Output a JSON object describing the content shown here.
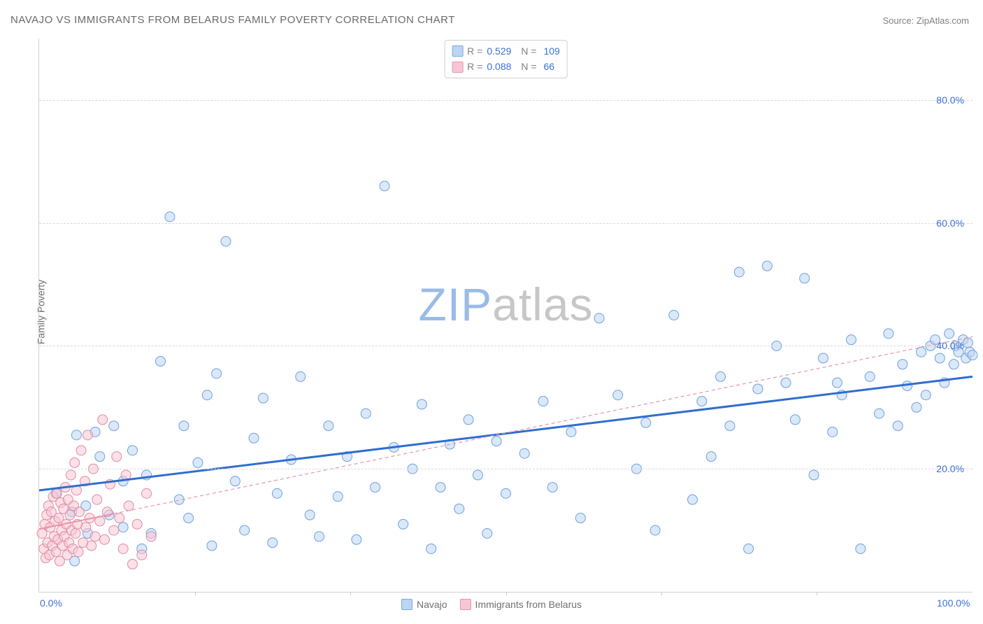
{
  "title": "NAVAJO VS IMMIGRANTS FROM BELARUS FAMILY POVERTY CORRELATION CHART",
  "source_prefix": "Source: ",
  "source_name": "ZipAtlas.com",
  "ylabel": "Family Poverty",
  "watermark_zip": "ZIP",
  "watermark_atlas": "atlas",
  "watermark_color_zip": "#9bbbe8",
  "watermark_color_atlas": "#c7c7c7",
  "legend_top": {
    "rows": [
      {
        "swatch_fill": "#bcd5f2",
        "swatch_border": "#7ba7e0",
        "r_label": "R =",
        "r_value": "0.529",
        "n_label": "N =",
        "n_value": "109"
      },
      {
        "swatch_fill": "#f6c7d3",
        "swatch_border": "#e893ab",
        "r_label": "R =",
        "r_value": "0.088",
        "n_label": "N =",
        "n_value": "66"
      }
    ]
  },
  "legend_bottom": [
    {
      "swatch_fill": "#bcd5f2",
      "swatch_border": "#7ba7e0",
      "label": "Navajo"
    },
    {
      "swatch_fill": "#f6c7d3",
      "swatch_border": "#e893ab",
      "label": "Immigrants from Belarus"
    }
  ],
  "chart": {
    "type": "scatter",
    "xlim": [
      0,
      100
    ],
    "ylim": [
      0,
      90
    ],
    "xtick_labels": [
      {
        "x": 0,
        "text": "0.0%"
      },
      {
        "x": 100,
        "text": "100.0%"
      }
    ],
    "xticks_minor": [
      16.7,
      33.3,
      50,
      66.7,
      83.3
    ],
    "yticks": [
      {
        "y": 20,
        "text": "20.0%",
        "color": "#3b6fd4"
      },
      {
        "y": 40,
        "text": "40.0%",
        "color": "#3b6fd4"
      },
      {
        "y": 60,
        "text": "60.0%",
        "color": "#3b6fd4"
      },
      {
        "y": 80,
        "text": "80.0%",
        "color": "#3b6fd4"
      }
    ],
    "marker_radius": 7,
    "marker_opacity": 0.55,
    "series": [
      {
        "name": "Navajo",
        "fill": "#bcd5f2",
        "stroke": "#6fa0de",
        "trend": {
          "x1": 0,
          "y1": 16.5,
          "x2": 100,
          "y2": 35.0,
          "stroke": "#2f6dd0",
          "width": 3,
          "dash": ""
        },
        "points": [
          [
            1.8,
            16
          ],
          [
            3.5,
            13
          ],
          [
            3.8,
            5
          ],
          [
            4,
            25.5
          ],
          [
            5,
            14
          ],
          [
            5.2,
            9.5
          ],
          [
            6,
            26
          ],
          [
            6.5,
            22
          ],
          [
            7.5,
            12.5
          ],
          [
            8,
            27
          ],
          [
            9,
            10.5
          ],
          [
            9,
            18
          ],
          [
            10,
            23
          ],
          [
            11,
            7
          ],
          [
            11.5,
            19
          ],
          [
            12,
            9.5
          ],
          [
            13,
            37.5
          ],
          [
            14,
            61
          ],
          [
            15,
            15
          ],
          [
            15.5,
            27
          ],
          [
            16,
            12
          ],
          [
            17,
            21
          ],
          [
            18,
            32
          ],
          [
            18.5,
            7.5
          ],
          [
            19,
            35.5
          ],
          [
            20,
            57
          ],
          [
            21,
            18
          ],
          [
            22,
            10
          ],
          [
            23,
            25
          ],
          [
            24,
            31.5
          ],
          [
            25,
            8
          ],
          [
            25.5,
            16
          ],
          [
            27,
            21.5
          ],
          [
            28,
            35
          ],
          [
            29,
            12.5
          ],
          [
            30,
            9
          ],
          [
            31,
            27
          ],
          [
            32,
            15.5
          ],
          [
            33,
            22
          ],
          [
            34,
            8.5
          ],
          [
            35,
            29
          ],
          [
            36,
            17
          ],
          [
            37,
            66
          ],
          [
            38,
            23.5
          ],
          [
            39,
            11
          ],
          [
            40,
            20
          ],
          [
            41,
            30.5
          ],
          [
            42,
            7
          ],
          [
            43,
            17
          ],
          [
            44,
            24
          ],
          [
            45,
            13.5
          ],
          [
            46,
            28
          ],
          [
            47,
            19
          ],
          [
            48,
            9.5
          ],
          [
            49,
            24.5
          ],
          [
            50,
            16
          ],
          [
            52,
            22.5
          ],
          [
            54,
            31
          ],
          [
            55,
            17
          ],
          [
            57,
            26
          ],
          [
            58,
            12
          ],
          [
            60,
            44.5
          ],
          [
            62,
            32
          ],
          [
            64,
            20
          ],
          [
            65,
            27.5
          ],
          [
            66,
            10
          ],
          [
            68,
            45
          ],
          [
            70,
            15
          ],
          [
            71,
            31
          ],
          [
            72,
            22
          ],
          [
            73,
            35
          ],
          [
            74,
            27
          ],
          [
            75,
            52
          ],
          [
            76,
            7
          ],
          [
            77,
            33
          ],
          [
            78,
            53
          ],
          [
            79,
            40
          ],
          [
            80,
            34
          ],
          [
            81,
            28
          ],
          [
            82,
            51
          ],
          [
            83,
            19
          ],
          [
            84,
            38
          ],
          [
            85,
            26
          ],
          [
            85.5,
            34
          ],
          [
            86,
            32
          ],
          [
            87,
            41
          ],
          [
            88,
            7
          ],
          [
            89,
            35
          ],
          [
            90,
            29
          ],
          [
            91,
            42
          ],
          [
            92,
            27
          ],
          [
            92.5,
            37
          ],
          [
            93,
            33.5
          ],
          [
            94,
            30
          ],
          [
            94.5,
            39
          ],
          [
            95,
            32
          ],
          [
            95.5,
            40
          ],
          [
            96,
            41
          ],
          [
            96.5,
            38
          ],
          [
            97,
            34
          ],
          [
            97.5,
            42
          ],
          [
            98,
            37
          ],
          [
            98.2,
            40
          ],
          [
            98.5,
            39
          ],
          [
            99,
            41
          ],
          [
            99.3,
            38
          ],
          [
            99.5,
            40.5
          ],
          [
            99.7,
            39
          ],
          [
            100,
            38.5
          ]
        ]
      },
      {
        "name": "Immigrants from Belarus",
        "fill": "#f6c7d3",
        "stroke": "#e38aa3",
        "trend": {
          "x1": 0,
          "y1": 10.2,
          "x2": 100,
          "y2": 41.5,
          "stroke": "#e693a9",
          "width": 1.2,
          "dash": "5 4"
        },
        "trend_solid_end_x": 8,
        "points": [
          [
            0.3,
            9.5
          ],
          [
            0.5,
            7
          ],
          [
            0.6,
            11
          ],
          [
            0.7,
            5.5
          ],
          [
            0.8,
            12.5
          ],
          [
            0.9,
            8
          ],
          [
            1.0,
            14
          ],
          [
            1.1,
            6
          ],
          [
            1.2,
            10.5
          ],
          [
            1.3,
            13
          ],
          [
            1.4,
            7.5
          ],
          [
            1.5,
            15.5
          ],
          [
            1.6,
            9
          ],
          [
            1.7,
            11.5
          ],
          [
            1.8,
            6.5
          ],
          [
            1.9,
            16
          ],
          [
            2.0,
            8.5
          ],
          [
            2.1,
            12
          ],
          [
            2.2,
            5
          ],
          [
            2.3,
            14.5
          ],
          [
            2.4,
            10
          ],
          [
            2.5,
            7.5
          ],
          [
            2.6,
            13.5
          ],
          [
            2.7,
            9
          ],
          [
            2.8,
            17
          ],
          [
            2.9,
            11
          ],
          [
            3.0,
            6
          ],
          [
            3.1,
            15
          ],
          [
            3.2,
            8
          ],
          [
            3.3,
            12.5
          ],
          [
            3.4,
            19
          ],
          [
            3.5,
            10
          ],
          [
            3.6,
            7
          ],
          [
            3.7,
            14
          ],
          [
            3.8,
            21
          ],
          [
            3.9,
            9.5
          ],
          [
            4.0,
            16.5
          ],
          [
            4.1,
            11
          ],
          [
            4.2,
            6.5
          ],
          [
            4.3,
            13
          ],
          [
            4.5,
            23
          ],
          [
            4.7,
            8
          ],
          [
            4.9,
            18
          ],
          [
            5.0,
            10.5
          ],
          [
            5.2,
            25.5
          ],
          [
            5.4,
            12
          ],
          [
            5.6,
            7.5
          ],
          [
            5.8,
            20
          ],
          [
            6.0,
            9
          ],
          [
            6.2,
            15
          ],
          [
            6.5,
            11.5
          ],
          [
            6.8,
            28
          ],
          [
            7.0,
            8.5
          ],
          [
            7.3,
            13
          ],
          [
            7.6,
            17.5
          ],
          [
            8.0,
            10
          ],
          [
            8.3,
            22
          ],
          [
            8.6,
            12
          ],
          [
            9.0,
            7
          ],
          [
            9.3,
            19
          ],
          [
            9.6,
            14
          ],
          [
            10,
            4.5
          ],
          [
            10.5,
            11
          ],
          [
            11,
            6
          ],
          [
            11.5,
            16
          ],
          [
            12,
            9
          ]
        ]
      }
    ]
  }
}
